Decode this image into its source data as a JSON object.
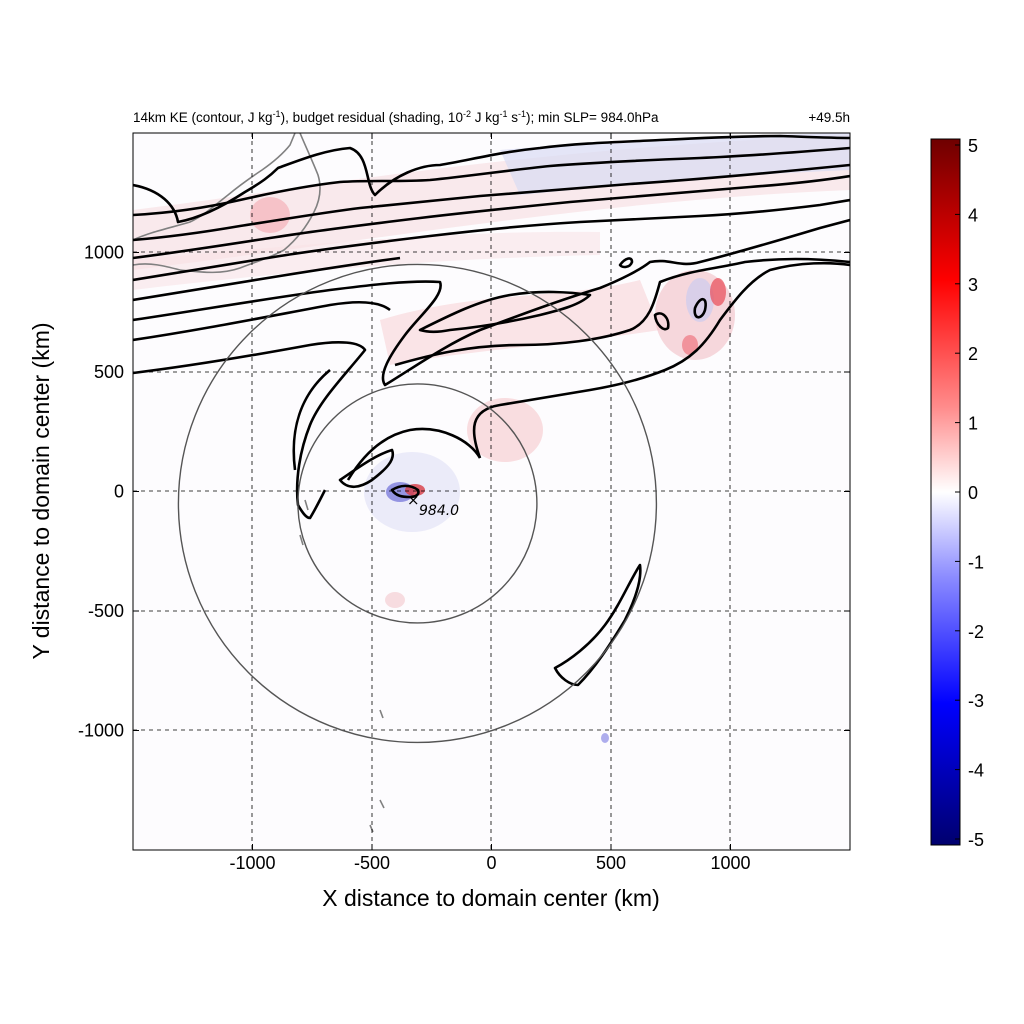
{
  "chart_data": {
    "type": "heatmap",
    "title_parts": [
      {
        "t": "14km KE (contour, J kg"
      },
      {
        "t": "-1",
        "sup": true
      },
      {
        "t": "), budget residual (shading, 10"
      },
      {
        "t": "-2",
        "sup": true
      },
      {
        "t": " J kg"
      },
      {
        "t": "-1",
        "sup": true
      },
      {
        "t": " s"
      },
      {
        "t": "-1",
        "sup": true
      },
      {
        "t": "); min SLP= 984.0hPa"
      }
    ],
    "time_label": "+49.5h",
    "xlabel": "X distance to domain center (km)",
    "ylabel": "Y distance to domain center (km)",
    "xlim": [
      -1500,
      1500
    ],
    "ylim": [
      -1500,
      1500
    ],
    "xticks": [
      -1000,
      -500,
      0,
      500,
      1000
    ],
    "yticks": [
      -1000,
      -500,
      0,
      500,
      1000
    ],
    "grid": true,
    "colorbar": {
      "range": [
        -5,
        5
      ],
      "ticks": [
        5,
        4,
        3,
        2,
        1,
        0,
        -1,
        -2,
        -3,
        -4,
        -5
      ],
      "colormap": "blue-white-red",
      "colors": [
        "#00007a",
        "#0000ff",
        "#ffffff",
        "#ff0000",
        "#7a0000"
      ]
    },
    "storm_center": {
      "x": -310,
      "y": -40,
      "label": "984.0",
      "marker": "×"
    },
    "range_circles": [
      {
        "center_x": -310,
        "center_y": -50,
        "radius_km": 500
      },
      {
        "center_x": -310,
        "center_y": -50,
        "radius_km": 1000
      }
    ]
  }
}
